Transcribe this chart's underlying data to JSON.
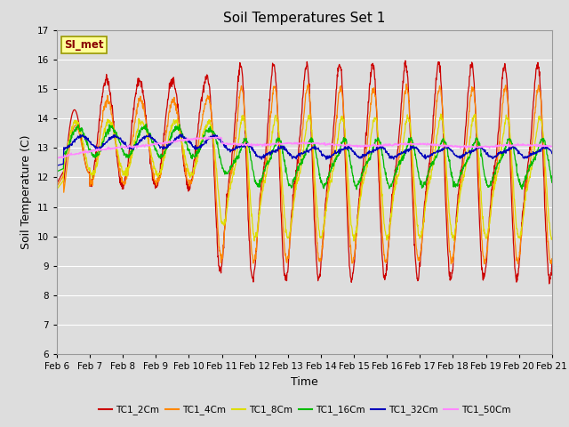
{
  "title": "Soil Temperatures Set 1",
  "xlabel": "Time",
  "ylabel": "Soil Temperature (C)",
  "ylim": [
    6.0,
    17.0
  ],
  "yticks": [
    6.0,
    7.0,
    8.0,
    9.0,
    10.0,
    11.0,
    12.0,
    13.0,
    14.0,
    15.0,
    16.0,
    17.0
  ],
  "x_labels": [
    "Feb 6",
    "Feb 7",
    "Feb 8",
    "Feb 9",
    "Feb 10",
    "Feb 11",
    "Feb 12",
    "Feb 13",
    "Feb 14",
    "Feb 15",
    "Feb 16",
    "Feb 17",
    "Feb 18",
    "Feb 19",
    "Feb 20",
    "Feb 21"
  ],
  "colors": {
    "TC1_2Cm": "#cc0000",
    "TC1_4Cm": "#ff8800",
    "TC1_8Cm": "#dddd00",
    "TC1_16Cm": "#00bb00",
    "TC1_32Cm": "#0000bb",
    "TC1_50Cm": "#ff88ff"
  },
  "annotation_text": "SI_met",
  "annotation_bg": "#ffff99",
  "annotation_border": "#999900",
  "plot_bg": "#dddddd",
  "fig_bg": "#dddddd",
  "grid_color": "#ffffff"
}
